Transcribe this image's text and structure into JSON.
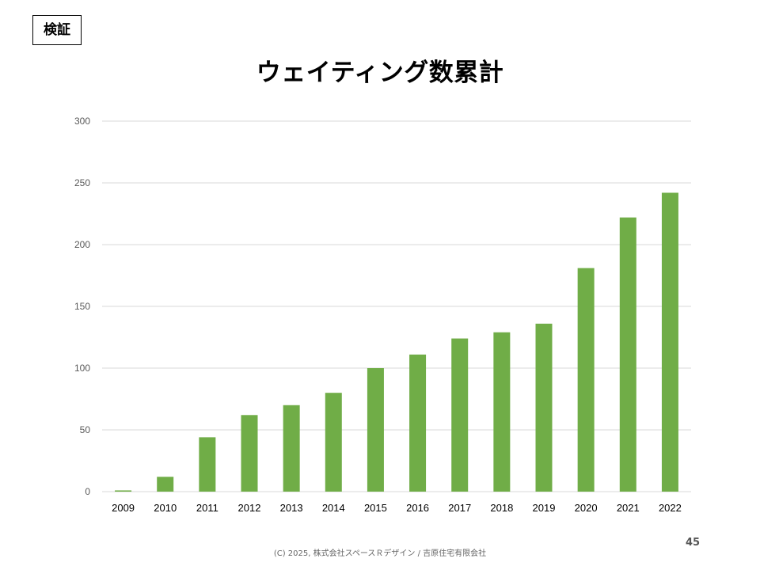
{
  "slide": {
    "tag": "検証",
    "title": "ウェイティング数累計",
    "page_number": "45",
    "footer": "(C) 2025, 株式会社スペースＲデザイン / 吉原住宅有限会社"
  },
  "colors": {
    "bar": "#70ad47",
    "grid": "#d9d9d9",
    "tick_text": "#595959"
  },
  "chart_data": {
    "type": "bar",
    "title": "",
    "xlabel": "",
    "ylabel": "",
    "categories": [
      "2009",
      "2010",
      "2011",
      "2012",
      "2013",
      "2014",
      "2015",
      "2016",
      "2017",
      "2018",
      "2019",
      "2020",
      "2021",
      "2022"
    ],
    "values": [
      1,
      12,
      44,
      62,
      70,
      80,
      100,
      111,
      124,
      129,
      136,
      181,
      222,
      242
    ],
    "ylim": [
      0,
      300
    ],
    "yticks": [
      "0",
      "50",
      "100",
      "150",
      "200",
      "250",
      "300"
    ],
    "grid": true,
    "legend": "none"
  }
}
